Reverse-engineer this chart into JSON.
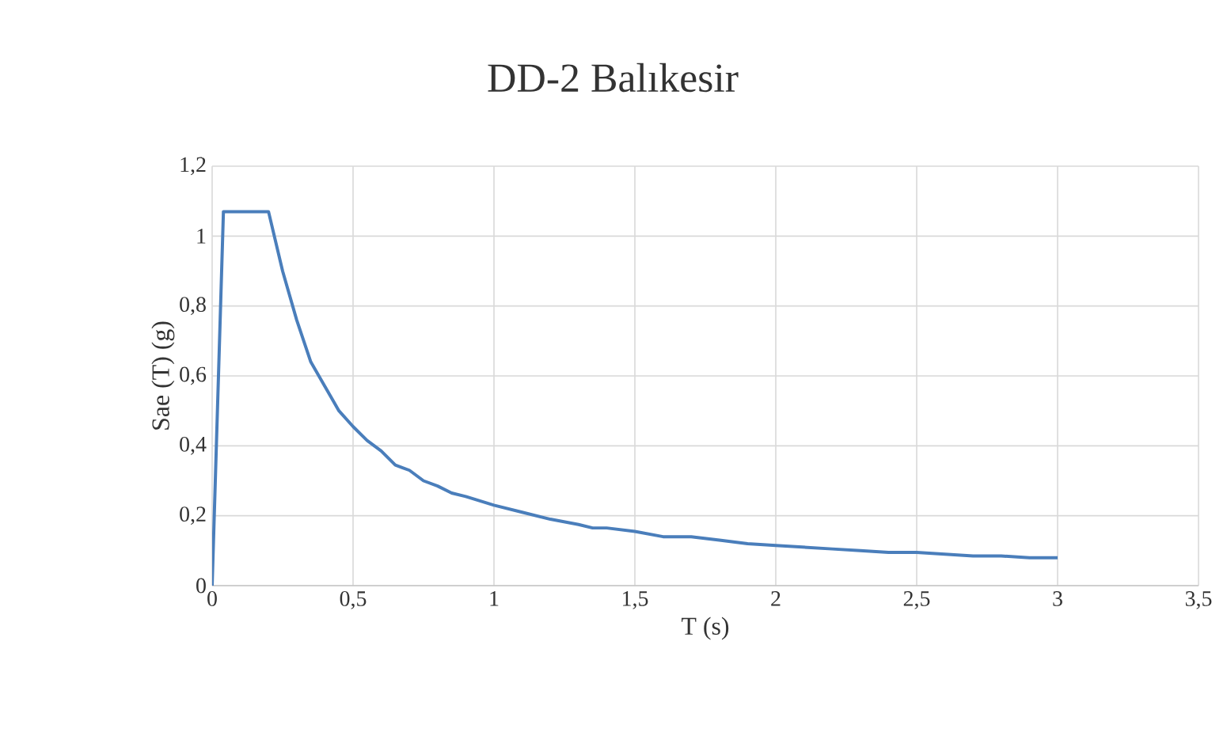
{
  "chart_data": {
    "type": "line",
    "title": "DD-2 Balıkesir",
    "xlabel": "T (s)",
    "ylabel": "Sae (T) (g)",
    "x": [
      0,
      0.04,
      0.2,
      0.25,
      0.3,
      0.35,
      0.4,
      0.45,
      0.5,
      0.55,
      0.6,
      0.65,
      0.7,
      0.75,
      0.8,
      0.85,
      0.9,
      1.0,
      1.1,
      1.2,
      1.3,
      1.35,
      1.4,
      1.5,
      1.6,
      1.7,
      1.8,
      1.9,
      2.0,
      2.1,
      2.2,
      2.3,
      2.4,
      2.5,
      2.6,
      2.7,
      2.8,
      2.9,
      3.0
    ],
    "series": [
      {
        "color": "#4a7ebb",
        "values": [
          0,
          1.07,
          1.07,
          0.9,
          0.76,
          0.64,
          0.57,
          0.5,
          0.455,
          0.415,
          0.385,
          0.345,
          0.33,
          0.3,
          0.285,
          0.265,
          0.255,
          0.23,
          0.21,
          0.19,
          0.175,
          0.165,
          0.165,
          0.155,
          0.14,
          0.14,
          0.13,
          0.12,
          0.115,
          0.11,
          0.105,
          0.1,
          0.095,
          0.095,
          0.09,
          0.085,
          0.085,
          0.08,
          0.08
        ]
      }
    ],
    "xlim": [
      0,
      3.5
    ],
    "ylim": [
      0,
      1.2
    ],
    "xticks": [
      0,
      {
        "value": 0.5,
        "label": "0,5"
      },
      1,
      {
        "value": 1.5,
        "label": "1,5"
      },
      2,
      {
        "value": 2.5,
        "label": "2,5"
      },
      3,
      {
        "value": 3.5,
        "label": "3,5"
      }
    ],
    "yticks": [
      0,
      {
        "value": 0.2,
        "label": "0,2"
      },
      {
        "value": 0.4,
        "label": "0,4"
      },
      {
        "value": 0.6,
        "label": "0,6"
      },
      {
        "value": 0.8,
        "label": "0,8"
      },
      1,
      {
        "value": 1.2,
        "label": "1,2"
      }
    ],
    "grid": true,
    "marker": "none",
    "line_style": "solid",
    "legend": false
  }
}
